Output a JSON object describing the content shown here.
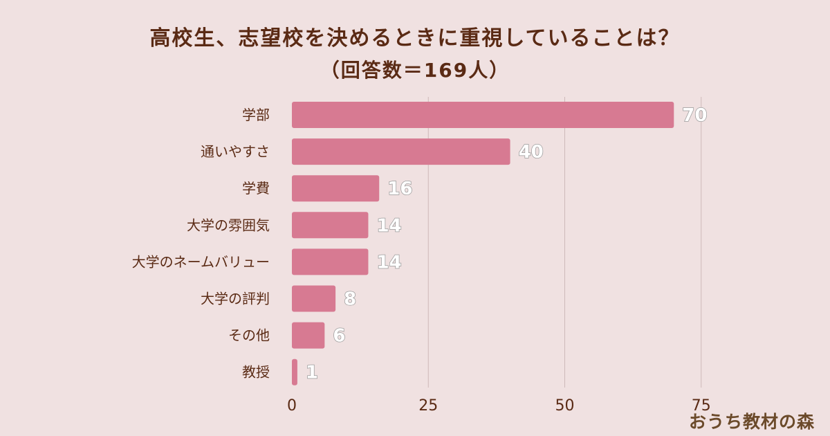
{
  "chart_data": {
    "type": "bar",
    "orientation": "horizontal",
    "title": "高校生、志望校を決めるときに重視していることは？",
    "subtitle": "（回答数＝169人）",
    "categories": [
      "学部",
      "通いやすさ",
      "学費",
      "大学の雰囲気",
      "大学のネームバリュー",
      "大学の評判",
      "その他",
      "教授"
    ],
    "values": [
      70,
      40,
      16,
      14,
      14,
      8,
      6,
      1
    ],
    "x_ticks": [
      0,
      25,
      50,
      75
    ],
    "xlim": [
      0,
      75
    ],
    "grid": true,
    "colors": {
      "bar": "#d77a92",
      "background": "#f0e1e1",
      "text": "#5a2a14"
    }
  },
  "brand": "おうち教材の森"
}
